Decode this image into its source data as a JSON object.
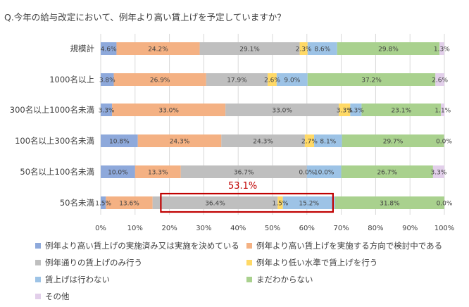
{
  "chart_data": {
    "type": "bar",
    "orientation": "horizontal",
    "stacked": true,
    "percent_stacked": true,
    "title": "Q.今年の給与改定において、例年より高い賃上げを予定していますか？",
    "categories": [
      "規模計",
      "1000名以上",
      "300名以上1000名未満",
      "100名以上300名未満",
      "50名以上100名未満",
      "50名未満"
    ],
    "xlim": [
      0,
      100
    ],
    "xticks": [
      "0%",
      "10%",
      "20%",
      "30%",
      "40%",
      "50%",
      "60%",
      "70%",
      "80%",
      "90%",
      "100%"
    ],
    "grid": "vertical",
    "legend_position": "bottom",
    "series": [
      {
        "name": "例年より高い賃上げの実施済み又は実施を決めている",
        "color": "#8EA9DB",
        "values": [
          4.6,
          3.8,
          3.3,
          10.8,
          10.0,
          1.5
        ]
      },
      {
        "name": "例年より高い賃上げを実施する方向で検討中である",
        "color": "#F4B183",
        "values": [
          24.2,
          26.9,
          33.0,
          24.3,
          13.3,
          13.6
        ]
      },
      {
        "name": "例年通りの賃上げのみ行う",
        "color": "#BFBFBF",
        "values": [
          29.1,
          17.9,
          33.0,
          24.3,
          36.7,
          36.4
        ]
      },
      {
        "name": "例年より低い水準で賃上げを行う",
        "color": "#FFD966",
        "values": [
          2.3,
          2.6,
          3.3,
          2.7,
          0.0,
          1.5
        ]
      },
      {
        "name": "賃上げは行わない",
        "color": "#9DC3E6",
        "values": [
          8.6,
          9.0,
          3.3,
          8.1,
          10.0,
          15.2
        ]
      },
      {
        "name": "まだわからない",
        "color": "#A9D18E",
        "values": [
          29.8,
          37.2,
          23.1,
          29.7,
          26.7,
          31.8
        ]
      },
      {
        "name": "その他",
        "color": "#E2CFEA",
        "values": [
          1.3,
          2.6,
          1.1,
          0.0,
          3.3,
          0.0
        ]
      }
    ],
    "labels": [
      [
        "4.6%",
        "24.2%",
        "29.1%",
        "2.3%",
        "8.6%",
        "29.8%",
        "1.3%"
      ],
      [
        "3.8%",
        "26.9%",
        "17.9%",
        "2.6%",
        "9.0%",
        "37.2%",
        "2.6%"
      ],
      [
        "3.3%",
        "33.0%",
        "33.0%",
        "3.3%",
        "3.3%",
        "23.1%",
        "1.1%"
      ],
      [
        "10.8%",
        "24.3%",
        "24.3%",
        "2.7%",
        "8.1%",
        "29.7%",
        "0.0%"
      ],
      [
        "10.0%",
        "13.3%",
        "36.7%",
        "0.0%",
        "10.0%",
        "26.7%",
        "3.3%"
      ],
      [
        "1.5%",
        "13.6%",
        "36.4%",
        "1.5%",
        "15.2%",
        "31.8%",
        "0.0%"
      ]
    ],
    "annotation": {
      "text": "53.1%",
      "color": "#C00000",
      "category": "50名未満",
      "x_range": [
        17.5,
        67.6
      ]
    }
  }
}
